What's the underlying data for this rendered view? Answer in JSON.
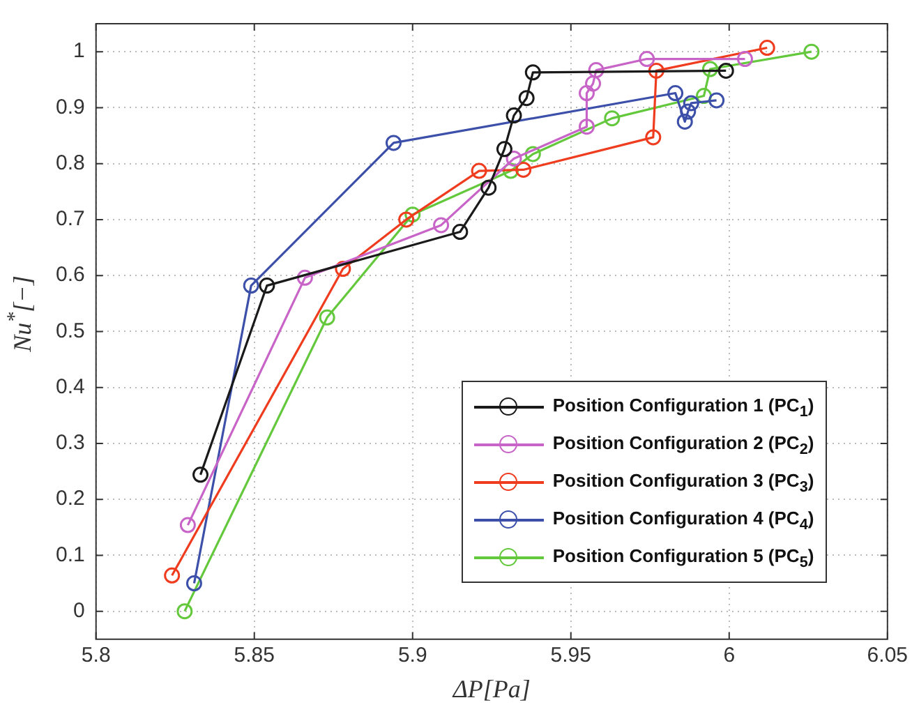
{
  "chart_data": {
    "type": "line",
    "xlabel": "ΔP[Pa]",
    "ylabel": "Nu$^{*}$[−]",
    "xlim": [
      5.8,
      6.05
    ],
    "xticks": [
      5.8,
      5.85,
      5.9,
      5.95,
      6,
      6.05
    ],
    "ylim": [
      -0.05,
      1.05
    ],
    "yticks": [
      0,
      0.1,
      0.2,
      0.3,
      0.4,
      0.5,
      0.6,
      0.7,
      0.8,
      0.9,
      1
    ],
    "grid": true,
    "legend": "bottom right",
    "marker": "circle",
    "line_style": "solid",
    "series": [
      {
        "name": "Position Configuration 1 (PC$_{1}$)",
        "color": "#1a1a1a",
        "x": [
          5.833,
          5.854,
          5.915,
          5.924,
          5.929,
          5.932,
          5.936,
          5.938,
          5.999
        ],
        "values": [
          0.244,
          0.582,
          0.678,
          0.757,
          0.826,
          0.886,
          0.917,
          0.963,
          0.966
        ]
      },
      {
        "name": "Position Configuration 2 (PC$_{2}$)",
        "color": "#c864c8",
        "x": [
          5.829,
          5.866,
          5.909,
          5.932,
          5.955,
          5.955,
          5.957,
          5.958,
          5.974,
          6.005
        ],
        "values": [
          0.154,
          0.596,
          0.69,
          0.809,
          0.866,
          0.926,
          0.943,
          0.967,
          0.987,
          0.987
        ]
      },
      {
        "name": "Position Configuration 3 (PC$_{3}$)",
        "color": "#f03c1e",
        "x": [
          5.824,
          5.878,
          5.898,
          5.921,
          5.935,
          5.976,
          5.977,
          6.012
        ],
        "values": [
          0.064,
          0.612,
          0.7,
          0.787,
          0.789,
          0.847,
          0.966,
          1.007
        ]
      },
      {
        "name": "Position Configuration 4 (PC$_{4}$)",
        "color": "#3c50aa",
        "x": [
          5.831,
          5.849,
          5.894,
          5.983,
          5.986,
          5.987,
          5.988,
          5.996
        ],
        "values": [
          0.05,
          0.582,
          0.837,
          0.926,
          0.875,
          0.893,
          0.908,
          0.913
        ]
      },
      {
        "name": "Position Configuration 5 (PC$_{5}$)",
        "color": "#64c83c",
        "x": [
          5.828,
          5.873,
          5.9,
          5.931,
          5.938,
          5.963,
          5.992,
          5.994,
          6.026
        ],
        "values": [
          0,
          0.525,
          0.709,
          0.787,
          0.817,
          0.881,
          0.921,
          0.969,
          1
        ]
      }
    ]
  }
}
